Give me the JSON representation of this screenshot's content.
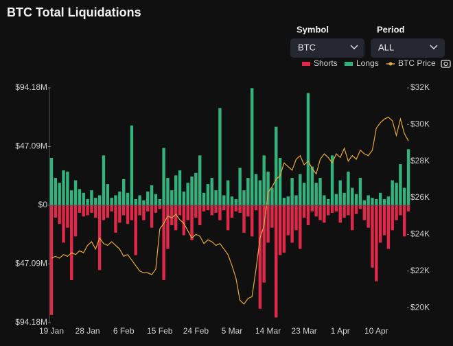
{
  "header": {
    "title": "BTC Total Liquidations",
    "symbol_label": "Symbol",
    "symbol_value": "BTC",
    "period_label": "Period",
    "period_value": "ALL"
  },
  "chart_data": {
    "type": "bar-line",
    "categories": [
      "19 Jan",
      null,
      null,
      null,
      null,
      null,
      null,
      null,
      null,
      "28 Jan",
      null,
      null,
      null,
      null,
      null,
      null,
      null,
      null,
      "6 Feb",
      null,
      null,
      null,
      null,
      null,
      null,
      null,
      null,
      "15 Feb",
      null,
      null,
      null,
      null,
      null,
      null,
      null,
      null,
      "24 Feb",
      null,
      null,
      null,
      null,
      null,
      null,
      null,
      null,
      "5 Mar",
      null,
      null,
      null,
      null,
      null,
      null,
      null,
      null,
      "14 Mar",
      null,
      null,
      null,
      null,
      null,
      null,
      null,
      null,
      "23 Mar",
      null,
      null,
      null,
      null,
      null,
      null,
      null,
      null,
      "1 Apr",
      null,
      null,
      null,
      null,
      null,
      null,
      null,
      null,
      "10 Apr",
      null,
      null,
      null,
      null,
      null,
      null,
      null,
      null
    ],
    "series": [
      {
        "name": "Shorts",
        "color": "#e0294a",
        "values": [
          -88,
          -10,
          -15,
          -30,
          -18,
          -60,
          -25,
          -6,
          -9,
          -8,
          -6,
          -10,
          -52,
          -12,
          -10,
          -5,
          -22,
          -14,
          -8,
          -15,
          -12,
          -40,
          -8,
          -12,
          -5,
          -18,
          -6,
          -3,
          -60,
          -35,
          -16,
          -20,
          -8,
          -24,
          -12,
          -28,
          -10,
          -16,
          -5,
          -4,
          -8,
          -6,
          -12,
          -4,
          -20,
          -10,
          -5,
          -6,
          -22,
          -9,
          -25,
          -4,
          -83,
          -62,
          -30,
          -18,
          -90,
          -40,
          -38,
          -24,
          -30,
          -20,
          -35,
          -10,
          -16,
          -5,
          -9,
          -12,
          -14,
          -8,
          -6,
          -5,
          -14,
          -10,
          -8,
          -20,
          -7,
          -3,
          -12,
          -18,
          -50,
          -61,
          -30,
          -24,
          -35,
          -20,
          -12,
          -8,
          -25,
          -5
        ]
      },
      {
        "name": "Longs",
        "color": "#34b27d",
        "values": [
          38,
          22,
          18,
          28,
          27,
          12,
          20,
          13,
          10,
          5,
          12,
          6,
          8,
          40,
          17,
          6,
          8,
          11,
          21,
          10,
          64,
          5,
          8,
          4,
          11,
          16,
          9,
          5,
          46,
          22,
          12,
          24,
          28,
          11,
          18,
          23,
          26,
          40,
          10,
          17,
          22,
          12,
          78,
          8,
          20,
          7,
          5,
          30,
          12,
          22,
          94,
          25,
          20,
          40,
          27,
          14,
          63,
          38,
          6,
          7,
          22,
          8,
          25,
          18,
          90,
          31,
          18,
          22,
          8,
          5,
          40,
          9,
          20,
          10,
          27,
          14,
          9,
          22,
          4,
          8,
          6,
          5,
          10,
          5,
          7,
          20,
          18,
          33,
          14,
          45
        ]
      },
      {
        "name": "BTC Price",
        "color": "#e8a93a",
        "axis": "y2",
        "values": [
          22.7,
          22.8,
          22.7,
          22.9,
          22.8,
          23.0,
          22.9,
          23.1,
          23.0,
          23.4,
          23.6,
          23.2,
          23.8,
          23.5,
          23.4,
          23.6,
          23.4,
          23.2,
          22.8,
          22.9,
          22.6,
          22.3,
          22.0,
          21.9,
          21.9,
          21.8,
          22.1,
          24.3,
          24.6,
          25.0,
          24.9,
          25.1,
          24.8,
          24.6,
          24.2,
          23.8,
          24.0,
          23.9,
          23.5,
          23.7,
          23.6,
          23.4,
          23.5,
          23.2,
          22.9,
          22.3,
          21.6,
          20.4,
          20.2,
          20.5,
          20.6,
          22.1,
          23.8,
          24.5,
          26.3,
          26.6,
          27.0,
          27.2,
          27.9,
          27.7,
          27.5,
          28.1,
          28.3,
          27.8,
          28.0,
          27.6,
          27.3,
          28.1,
          28.4,
          28.2,
          27.9,
          28.4,
          28.2,
          28.7,
          28.0,
          28.3,
          28.1,
          28.6,
          28.4,
          28.3,
          28.6,
          29.8,
          30.1,
          30.3,
          30.4,
          30.2,
          29.4,
          30.3,
          29.5,
          29.1
        ]
      }
    ],
    "ylim": [
      -94.18,
      94.18
    ],
    "yticks": [
      {
        "value": 94.18,
        "label": "$94.18M"
      },
      {
        "value": 47.09,
        "label": "$47.09M"
      },
      {
        "value": 0,
        "label": "$0"
      },
      {
        "value": -47.09,
        "label": "$47.09M"
      },
      {
        "value": -94.18,
        "label": "$94.18M"
      }
    ],
    "y2lim": [
      19.18,
      32
    ],
    "y2ticks": [
      {
        "value": 32,
        "label": "$32K"
      },
      {
        "value": 30,
        "label": "$30K"
      },
      {
        "value": 28,
        "label": "$28K"
      },
      {
        "value": 26,
        "label": "$26K"
      },
      {
        "value": 24,
        "label": "$24K"
      },
      {
        "value": 22,
        "label": "$22K"
      },
      {
        "value": 20,
        "label": "$20K"
      }
    ],
    "grid": false
  }
}
